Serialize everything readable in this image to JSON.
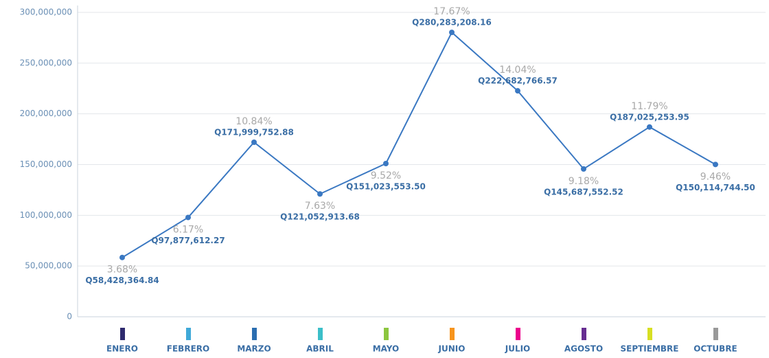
{
  "chart_data": {
    "type": "line",
    "categories": [
      "ENERO",
      "FEBRERO",
      "MARZO",
      "ABRIL",
      "MAYO",
      "JUNIO",
      "JULIO",
      "AGOSTO",
      "SEPTIEMBRE",
      "OCTUBRE"
    ],
    "series": [
      {
        "color": "#3a78c2",
        "values": [
          58428364.84,
          97877612.27,
          171999752.88,
          121052913.68,
          151023553.5,
          280283208.16,
          222682766.57,
          145687552.52,
          187025253.95,
          150114744.5
        ],
        "value_labels": [
          "Q58,428,364.84",
          "Q97,877,612.27",
          "Q171,999,752.88",
          "Q121,052,913.68",
          "Q151,023,553.50",
          "Q280,283,208.16",
          "Q222,682,766.57",
          "Q145,687,552.52",
          "Q187,025,253.95",
          "Q150,114,744.50"
        ],
        "percent_labels": [
          "3.68%",
          "6.17%",
          "10.84%",
          "7.63%",
          "9.52%",
          "17.67%",
          "14.04%",
          "9.18%",
          "11.79%",
          "9.46%"
        ]
      }
    ],
    "category_colors": [
      "#2e2a6e",
      "#3fa9d8",
      "#2a6db0",
      "#3cbfc9",
      "#8cc63f",
      "#f7941d",
      "#ec008c",
      "#662d91",
      "#d7df23",
      "#999999"
    ],
    "ylim": [
      0,
      300000000
    ],
    "yticks": [
      0,
      {
        "value": 50000000,
        "label": "50,000,000"
      },
      {
        "value": 100000000,
        "label": "100,000,000"
      },
      {
        "value": 150000000,
        "label": "150,000,000"
      },
      {
        "value": 200000000,
        "label": "200,000,000"
      },
      {
        "value": 250000000,
        "label": "250,000,000"
      },
      {
        "value": 300000000,
        "label": "300,000,000"
      }
    ],
    "grid": true
  }
}
